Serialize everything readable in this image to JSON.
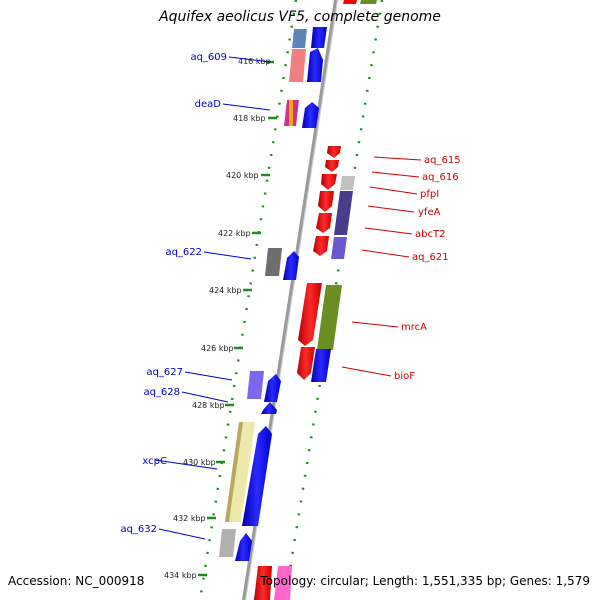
{
  "title": "Aquifex aeolicus VF5, complete genome",
  "accession": "Accession: NC_000918",
  "topology": "Topology: circular; Length: 1,551,335 bp; Genes: 1,579",
  "ticks": [
    "416 kbp",
    "418 kbp",
    "420 kbp",
    "422 kbp",
    "424 kbp",
    "426 kbp",
    "428 kbp",
    "430 kbp",
    "432 kbp",
    "434 kbp"
  ],
  "left_labels": [
    "aq_609",
    "deaD",
    "aq_622",
    "aq_627",
    "aq_628",
    "xcpC",
    "aq_632"
  ],
  "right_labels": [
    "aq_615",
    "aq_616",
    "pfpI",
    "yfeA",
    "abcT2",
    "aq_621",
    "mrcA",
    "bioF"
  ],
  "colors": {
    "forward_label": "#0000cc",
    "reverse_label": "#cc0000",
    "forward_gene": "#0000ff",
    "reverse_gene": "#ff0000",
    "tick_dots": "#228b22",
    "backbone": "#808080"
  }
}
